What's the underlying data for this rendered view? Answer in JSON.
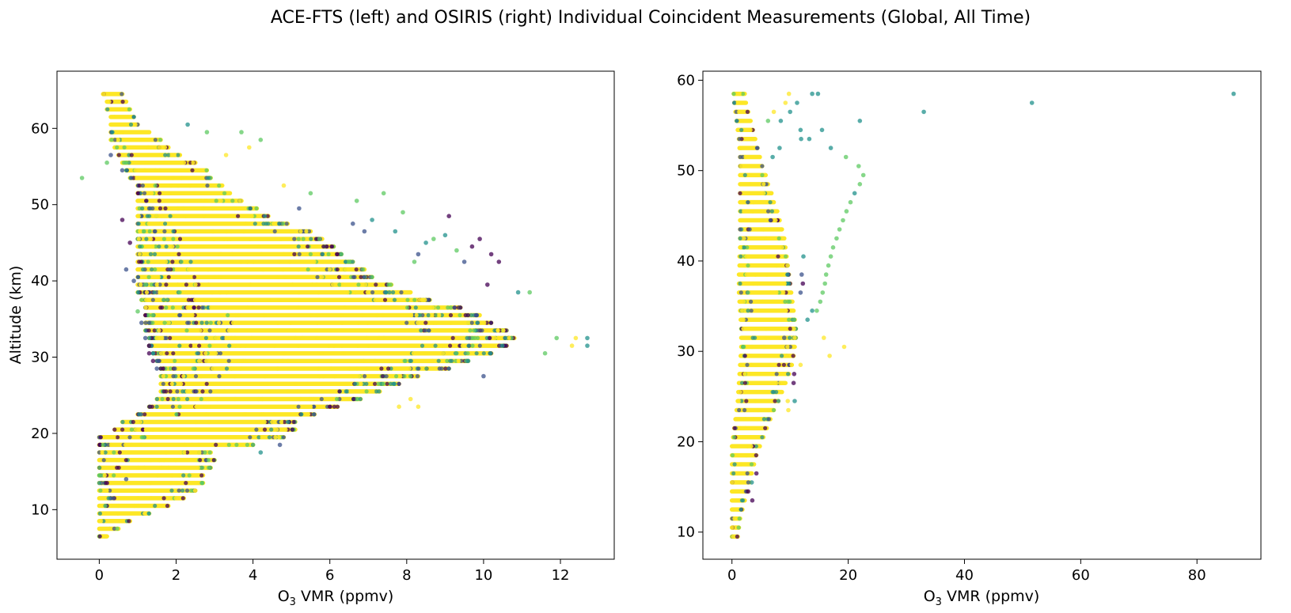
{
  "figure": {
    "title": "ACE-FTS (left) and OSIRIS (right) Individual Coincident Measurements (Global, All Time)"
  },
  "colormap": {
    "name": "viridis",
    "colors": [
      "#440154",
      "#3b528b",
      "#21918c",
      "#5ec962",
      "#fde725"
    ],
    "marker_alpha": 0.75
  },
  "chart_data": [
    {
      "type": "scatter",
      "name_hint": "ACE-FTS",
      "title": "",
      "xlabel_main": "O",
      "xlabel_sub": "3",
      "xlabel_rest": " VMR (ppmv)",
      "ylabel": "Altitude (km)",
      "xlim": [
        -1.1,
        13.4
      ],
      "ylim": [
        3.5,
        67.5
      ],
      "xticks": [
        0,
        2,
        4,
        6,
        8,
        10,
        12
      ],
      "yticks": [
        10,
        20,
        30,
        40,
        50,
        60
      ],
      "grid": false,
      "altitude_levels": [
        6.5,
        7.5,
        8.5,
        9.5,
        10.5,
        11.5,
        12.5,
        13.5,
        14.5,
        15.5,
        16.5,
        17.5,
        18.5,
        19.5,
        20.5,
        21.5,
        22.5,
        23.5,
        24.5,
        25.5,
        26.5,
        27.5,
        28.5,
        29.5,
        30.5,
        31.5,
        32.5,
        33.5,
        34.5,
        35.5,
        36.5,
        37.5,
        38.5,
        39.5,
        40.5,
        41.5,
        42.5,
        43.5,
        44.5,
        45.5,
        46.5,
        47.5,
        48.5,
        49.5,
        50.5,
        51.5,
        52.5,
        53.5,
        54.5,
        55.5,
        56.5,
        57.5,
        58.5,
        59.5,
        60.5,
        61.5,
        62.5,
        63.5,
        64.5
      ],
      "dense_min": [
        0.0,
        0.0,
        0.0,
        0.0,
        0.0,
        0.0,
        0.0,
        0.0,
        0.0,
        0.0,
        0.0,
        0.0,
        0.0,
        0.0,
        0.4,
        0.6,
        1.0,
        1.3,
        1.5,
        1.6,
        1.6,
        1.6,
        1.6,
        1.5,
        1.4,
        1.3,
        1.3,
        1.2,
        1.2,
        1.2,
        1.2,
        1.1,
        1.0,
        1.0,
        1.0,
        1.0,
        1.0,
        1.0,
        1.0,
        1.0,
        1.0,
        1.0,
        1.0,
        1.0,
        1.0,
        1.0,
        1.0,
        0.8,
        0.7,
        0.6,
        0.5,
        0.4,
        0.3,
        0.3,
        0.3,
        0.3,
        0.2,
        0.2,
        0.1
      ],
      "dense_max": [
        0.2,
        0.5,
        0.8,
        1.3,
        1.8,
        2.2,
        2.5,
        2.7,
        2.7,
        2.9,
        3.0,
        2.9,
        4.0,
        4.8,
        5.1,
        5.1,
        5.6,
        6.2,
        6.8,
        7.3,
        7.8,
        8.3,
        9.1,
        9.6,
        10.2,
        10.6,
        10.8,
        10.6,
        10.2,
        9.9,
        9.4,
        8.6,
        8.1,
        7.6,
        7.1,
        6.9,
        6.6,
        6.3,
        6.1,
        5.8,
        5.5,
        4.9,
        4.4,
        4.1,
        3.7,
        3.4,
        3.2,
        2.9,
        2.8,
        2.5,
        2.1,
        1.8,
        1.6,
        1.3,
        1.0,
        0.9,
        0.8,
        0.7,
        0.6
      ],
      "outliers": [
        {
          "x": -0.45,
          "y": 53.5,
          "c": 3
        },
        {
          "x": 12.7,
          "y": 32.5,
          "c": 2
        },
        {
          "x": 12.7,
          "y": 31.5,
          "c": 2
        },
        {
          "x": 12.4,
          "y": 32.5,
          "c": 4
        },
        {
          "x": 12.3,
          "y": 31.5,
          "c": 4
        },
        {
          "x": 11.9,
          "y": 32.5,
          "c": 3
        },
        {
          "x": 11.6,
          "y": 30.5,
          "c": 3
        },
        {
          "x": 11.2,
          "y": 38.5,
          "c": 3
        },
        {
          "x": 10.9,
          "y": 38.5,
          "c": 2
        },
        {
          "x": 10.2,
          "y": 43.5,
          "c": 0
        },
        {
          "x": 10.4,
          "y": 42.5,
          "c": 0
        },
        {
          "x": 10.1,
          "y": 39.5,
          "c": 0
        },
        {
          "x": 9.9,
          "y": 45.5,
          "c": 0
        },
        {
          "x": 9.7,
          "y": 44.5,
          "c": 0
        },
        {
          "x": 9.5,
          "y": 42.5,
          "c": 1
        },
        {
          "x": 9.3,
          "y": 44.0,
          "c": 3
        },
        {
          "x": 9.1,
          "y": 48.5,
          "c": 0
        },
        {
          "x": 9.0,
          "y": 46.0,
          "c": 2
        },
        {
          "x": 8.7,
          "y": 45.5,
          "c": 3
        },
        {
          "x": 8.5,
          "y": 45.0,
          "c": 2
        },
        {
          "x": 8.3,
          "y": 43.5,
          "c": 1
        },
        {
          "x": 8.2,
          "y": 42.5,
          "c": 3
        },
        {
          "x": 7.9,
          "y": 49.0,
          "c": 3
        },
        {
          "x": 7.7,
          "y": 46.5,
          "c": 2
        },
        {
          "x": 7.4,
          "y": 51.5,
          "c": 3
        },
        {
          "x": 7.1,
          "y": 48.0,
          "c": 2
        },
        {
          "x": 6.9,
          "y": 46.5,
          "c": 1
        },
        {
          "x": 6.7,
          "y": 50.5,
          "c": 3
        },
        {
          "x": 6.6,
          "y": 47.5,
          "c": 1
        },
        {
          "x": 5.5,
          "y": 51.5,
          "c": 3
        },
        {
          "x": 5.2,
          "y": 49.5,
          "c": 1
        },
        {
          "x": 4.8,
          "y": 52.5,
          "c": 4
        },
        {
          "x": 4.2,
          "y": 58.5,
          "c": 3
        },
        {
          "x": 3.9,
          "y": 57.5,
          "c": 4
        },
        {
          "x": 3.7,
          "y": 59.5,
          "c": 3
        },
        {
          "x": 3.3,
          "y": 56.5,
          "c": 4
        },
        {
          "x": 2.8,
          "y": 59.5,
          "c": 3
        },
        {
          "x": 2.3,
          "y": 60.5,
          "c": 2
        },
        {
          "x": 8.1,
          "y": 24.5,
          "c": 4
        },
        {
          "x": 7.8,
          "y": 23.5,
          "c": 4
        },
        {
          "x": 8.3,
          "y": 23.5,
          "c": 4
        },
        {
          "x": 9.6,
          "y": 29.5,
          "c": 2
        },
        {
          "x": 10.0,
          "y": 27.5,
          "c": 1
        },
        {
          "x": 4.7,
          "y": 18.5,
          "c": 1
        },
        {
          "x": 4.2,
          "y": 17.5,
          "c": 2
        },
        {
          "x": 4.0,
          "y": 18.5,
          "c": 3
        },
        {
          "x": 0.7,
          "y": 14.0,
          "c": 1
        },
        {
          "x": 1.3,
          "y": 30.5,
          "c": 0
        },
        {
          "x": 1.4,
          "y": 29.5,
          "c": 0
        },
        {
          "x": 1.5,
          "y": 28.5,
          "c": 1
        },
        {
          "x": 1.3,
          "y": 31.5,
          "c": 0
        },
        {
          "x": 1.2,
          "y": 32.5,
          "c": 1
        },
        {
          "x": 1.1,
          "y": 34.5,
          "c": 1
        },
        {
          "x": 1.0,
          "y": 36.0,
          "c": 3
        },
        {
          "x": 0.7,
          "y": 41.5,
          "c": 1
        },
        {
          "x": 0.8,
          "y": 45.0,
          "c": 0
        },
        {
          "x": 0.6,
          "y": 48.0,
          "c": 0
        },
        {
          "x": 0.9,
          "y": 40.0,
          "c": 1
        },
        {
          "x": 0.6,
          "y": 54.5,
          "c": 1
        },
        {
          "x": 0.2,
          "y": 55.5,
          "c": 3
        },
        {
          "x": 0.3,
          "y": 56.5,
          "c": 1
        }
      ]
    },
    {
      "type": "scatter",
      "name_hint": "OSIRIS",
      "title": "",
      "xlabel_main": "O",
      "xlabel_sub": "3",
      "xlabel_rest": " VMR (ppmv)",
      "ylabel": "",
      "xlim": [
        -5,
        91
      ],
      "ylim": [
        7.0,
        61.0
      ],
      "xticks": [
        0,
        20,
        40,
        60,
        80
      ],
      "yticks": [
        10,
        20,
        30,
        40,
        50,
        60
      ],
      "grid": false,
      "altitude_levels": [
        9.5,
        10.5,
        11.5,
        12.5,
        13.5,
        14.5,
        15.5,
        16.5,
        17.5,
        18.5,
        19.5,
        20.5,
        21.5,
        22.5,
        23.5,
        24.5,
        25.5,
        26.5,
        27.5,
        28.5,
        29.5,
        30.5,
        31.5,
        32.5,
        33.5,
        34.5,
        35.5,
        36.5,
        37.5,
        38.5,
        39.5,
        40.5,
        41.5,
        42.5,
        43.5,
        44.5,
        45.5,
        46.5,
        47.5,
        48.5,
        49.5,
        50.5,
        51.5,
        52.5,
        53.5,
        54.5,
        55.5,
        56.5,
        57.5,
        58.5
      ],
      "dense_min": [
        0.0,
        0.0,
        0.0,
        0.0,
        0.0,
        0.0,
        0.0,
        0.0,
        0.0,
        0.0,
        0.0,
        0.2,
        0.4,
        0.6,
        0.8,
        1.0,
        1.1,
        1.2,
        1.3,
        1.4,
        1.5,
        1.6,
        1.6,
        1.6,
        1.5,
        1.4,
        1.3,
        1.2,
        1.2,
        1.2,
        1.3,
        1.3,
        1.4,
        1.4,
        1.4,
        1.4,
        1.4,
        1.4,
        1.4,
        1.4,
        1.4,
        1.4,
        1.4,
        1.3,
        1.2,
        1.0,
        0.8,
        0.6,
        0.4,
        0.3
      ],
      "dense_max": [
        1.0,
        1.2,
        1.4,
        1.8,
        2.2,
        2.6,
        3.0,
        3.4,
        3.8,
        4.2,
        4.8,
        5.4,
        6.0,
        6.6,
        7.2,
        8.0,
        8.6,
        9.2,
        9.8,
        10.3,
        10.6,
        10.8,
        11.0,
        11.0,
        10.8,
        10.6,
        10.4,
        10.2,
        10.0,
        9.8,
        9.6,
        9.4,
        9.2,
        9.0,
        8.6,
        8.2,
        7.8,
        7.2,
        6.8,
        6.2,
        5.8,
        5.2,
        4.8,
        4.4,
        4.0,
        3.6,
        3.2,
        2.8,
        2.4,
        2.2
      ],
      "outliers": [
        {
          "x": 86.3,
          "y": 58.5,
          "c": 2
        },
        {
          "x": 51.6,
          "y": 57.5,
          "c": 2
        },
        {
          "x": 33.0,
          "y": 56.5,
          "c": 2
        },
        {
          "x": 22.0,
          "y": 55.5,
          "c": 2
        },
        {
          "x": 13.8,
          "y": 58.5,
          "c": 2
        },
        {
          "x": 14.8,
          "y": 58.5,
          "c": 2
        },
        {
          "x": 9.8,
          "y": 58.5,
          "c": 4
        },
        {
          "x": 11.2,
          "y": 57.5,
          "c": 2
        },
        {
          "x": 9.2,
          "y": 57.5,
          "c": 4
        },
        {
          "x": 10.0,
          "y": 56.5,
          "c": 2
        },
        {
          "x": 7.2,
          "y": 56.5,
          "c": 4
        },
        {
          "x": 8.4,
          "y": 55.5,
          "c": 2
        },
        {
          "x": 6.2,
          "y": 55.5,
          "c": 3
        },
        {
          "x": 15.5,
          "y": 54.5,
          "c": 2
        },
        {
          "x": 11.8,
          "y": 54.5,
          "c": 2
        },
        {
          "x": 13.3,
          "y": 53.5,
          "c": 2
        },
        {
          "x": 11.9,
          "y": 53.5,
          "c": 2
        },
        {
          "x": 17.0,
          "y": 52.5,
          "c": 2
        },
        {
          "x": 8.2,
          "y": 52.5,
          "c": 2
        },
        {
          "x": 19.6,
          "y": 51.5,
          "c": 3
        },
        {
          "x": 7.0,
          "y": 51.5,
          "c": 2
        },
        {
          "x": 21.8,
          "y": 50.5,
          "c": 3
        },
        {
          "x": 22.6,
          "y": 49.5,
          "c": 3
        },
        {
          "x": 22.0,
          "y": 48.5,
          "c": 3
        },
        {
          "x": 21.1,
          "y": 47.5,
          "c": 2
        },
        {
          "x": 20.4,
          "y": 46.5,
          "c": 3
        },
        {
          "x": 19.7,
          "y": 45.5,
          "c": 3
        },
        {
          "x": 19.1,
          "y": 44.5,
          "c": 3
        },
        {
          "x": 18.5,
          "y": 43.5,
          "c": 3
        },
        {
          "x": 18.0,
          "y": 42.5,
          "c": 3
        },
        {
          "x": 17.4,
          "y": 41.5,
          "c": 3
        },
        {
          "x": 17.0,
          "y": 40.5,
          "c": 3
        },
        {
          "x": 16.6,
          "y": 39.5,
          "c": 3
        },
        {
          "x": 16.2,
          "y": 38.5,
          "c": 3
        },
        {
          "x": 16.0,
          "y": 37.5,
          "c": 3
        },
        {
          "x": 15.6,
          "y": 36.5,
          "c": 3
        },
        {
          "x": 15.2,
          "y": 35.5,
          "c": 3
        },
        {
          "x": 14.6,
          "y": 34.5,
          "c": 3
        },
        {
          "x": 13.8,
          "y": 34.5,
          "c": 2
        },
        {
          "x": 13.0,
          "y": 33.5,
          "c": 2
        },
        {
          "x": 12.2,
          "y": 37.5,
          "c": 0
        },
        {
          "x": 12.0,
          "y": 38.5,
          "c": 1
        },
        {
          "x": 11.8,
          "y": 36.5,
          "c": 1
        },
        {
          "x": 12.3,
          "y": 40.5,
          "c": 2
        },
        {
          "x": 15.8,
          "y": 31.5,
          "c": 4
        },
        {
          "x": 19.3,
          "y": 30.5,
          "c": 4
        },
        {
          "x": 16.8,
          "y": 29.5,
          "c": 4
        },
        {
          "x": 11.8,
          "y": 28.5,
          "c": 4
        },
        {
          "x": 10.7,
          "y": 27.5,
          "c": 0
        },
        {
          "x": 10.6,
          "y": 26.5,
          "c": 0
        },
        {
          "x": 10.8,
          "y": 24.5,
          "c": 2
        },
        {
          "x": 9.6,
          "y": 24.5,
          "c": 4
        },
        {
          "x": 9.7,
          "y": 23.5,
          "c": 4
        },
        {
          "x": 3.5,
          "y": 13.5,
          "c": 0
        },
        {
          "x": 2.8,
          "y": 14.5,
          "c": 0
        },
        {
          "x": 3.4,
          "y": 15.5,
          "c": 2
        },
        {
          "x": 4.2,
          "y": 16.5,
          "c": 0
        },
        {
          "x": 9.0,
          "y": 31.5,
          "c": 1
        }
      ]
    }
  ]
}
